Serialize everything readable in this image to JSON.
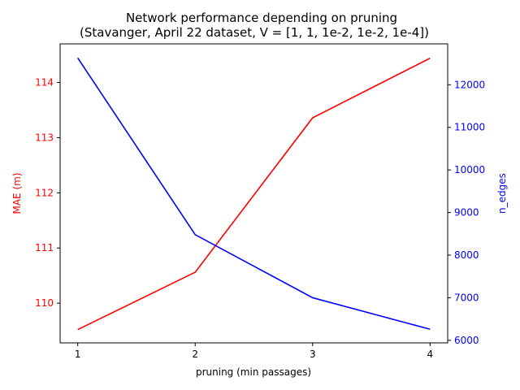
{
  "chart_data": {
    "type": "line",
    "title_lines": [
      "Network performance depending on pruning",
      "(Stavanger, April 22 dataset, V = [1, 1, 1e-2, 1e-2, 1e-4])"
    ],
    "xlabel": "pruning (min passages)",
    "ylabel_left": "MAE (m)",
    "ylabel_right": "n_edges",
    "x": [
      1,
      2,
      3,
      4
    ],
    "xticks": [
      1,
      2,
      3,
      4
    ],
    "xlim": [
      0.85,
      4.15
    ],
    "series": [
      {
        "name": "MAE (m)",
        "axis": "left",
        "color": "#ff0000",
        "values": [
          109.52,
          110.56,
          113.36,
          114.44
        ]
      },
      {
        "name": "n_edges",
        "axis": "right",
        "color": "#0000ff",
        "values": [
          12630,
          8480,
          7000,
          6260
        ]
      }
    ],
    "yticks_left": [
      110,
      111,
      112,
      113,
      114
    ],
    "ylim_left": [
      109.28,
      114.7
    ],
    "yticks_right": [
      6000,
      7000,
      8000,
      9000,
      10000,
      11000,
      12000
    ],
    "ylim_right": [
      5940,
      12960
    ],
    "left_axis_color": "#ff0000",
    "right_axis_color": "#0000ff",
    "grid": false
  }
}
